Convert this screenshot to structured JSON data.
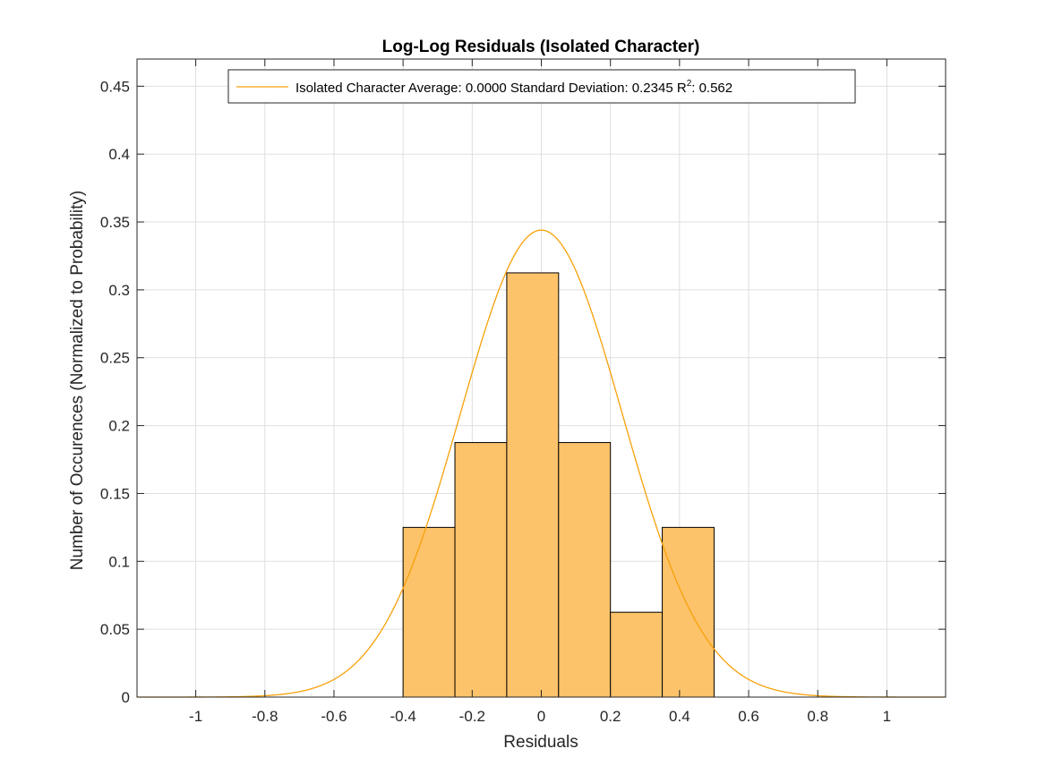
{
  "chart_data": {
    "type": "bar",
    "title": "Log-Log Residuals (Isolated Character)",
    "xlabel": "Residuals",
    "ylabel": "Number of Occurences (Normalized to Probability)",
    "xlim": [
      -1.17,
      1.17
    ],
    "ylim": [
      0,
      0.47
    ],
    "xticks": [
      -1,
      -0.8,
      -0.6,
      -0.4,
      -0.2,
      0,
      0.2,
      0.4,
      0.6,
      0.8,
      1
    ],
    "xtick_labels": [
      "-1",
      "-0.8",
      "-0.6",
      "-0.4",
      "-0.2",
      "0",
      "0.2",
      "0.4",
      "0.6",
      "0.8",
      "1"
    ],
    "yticks": [
      0,
      0.05,
      0.1,
      0.15,
      0.2,
      0.25,
      0.3,
      0.35,
      0.4,
      0.45
    ],
    "ytick_labels": [
      "0",
      "0.05",
      "0.1",
      "0.15",
      "0.2",
      "0.25",
      "0.3",
      "0.35",
      "0.4",
      "0.45"
    ],
    "grid": true,
    "legend_position": "top",
    "histogram": {
      "bin_edges": [
        -0.4,
        -0.25,
        -0.1,
        0.05,
        0.2,
        0.35,
        0.5
      ],
      "values": [
        0.125,
        0.1875,
        0.3125,
        0.1875,
        0.0625,
        0.125
      ],
      "face_color": "#FDC36A",
      "edge_color": "#000000"
    },
    "fit_curve": {
      "type": "normal",
      "mean": 0.0,
      "std": 0.2345,
      "peak": 0.344,
      "color": "#F7A10A"
    },
    "legend": {
      "main": "Isolated Character Average: 0.0000 Standard Deviation: 0.2345 R",
      "superscript": "2",
      "tail": ": 0.562"
    }
  }
}
